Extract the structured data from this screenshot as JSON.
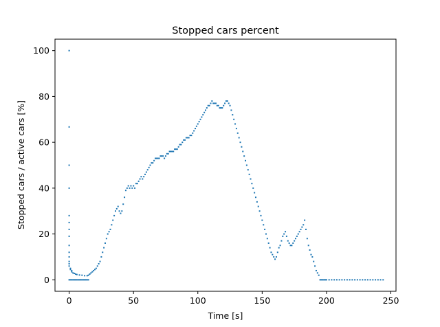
{
  "chart_data": {
    "type": "scatter",
    "title": "Stopped cars percent",
    "xlabel": "Time [s]",
    "ylabel": "Stopped cars / active cars [%]",
    "xlim": [
      -11,
      254
    ],
    "ylim": [
      -5,
      105
    ],
    "xticks": [
      0,
      50,
      100,
      150,
      200,
      250
    ],
    "yticks": [
      0,
      20,
      40,
      60,
      80,
      100
    ],
    "grid": false,
    "marker_color": "#1f77b4",
    "series": [
      {
        "marker": "small-dot",
        "points": [
          [
            0,
            100
          ],
          [
            0,
            66.7
          ],
          [
            0,
            50
          ],
          [
            0,
            40
          ],
          [
            0,
            28
          ],
          [
            0,
            25
          ],
          [
            0,
            22
          ],
          [
            0,
            19
          ],
          [
            0,
            15
          ],
          [
            0,
            12
          ],
          [
            0,
            10
          ],
          [
            0,
            8
          ],
          [
            0,
            7
          ],
          [
            0,
            6
          ],
          [
            1,
            5
          ],
          [
            1,
            4.5
          ],
          [
            2,
            4
          ],
          [
            2,
            3.5
          ],
          [
            3,
            3
          ],
          [
            4,
            2.8
          ],
          [
            5,
            2.5
          ],
          [
            6,
            2.3
          ],
          [
            8,
            2.1
          ],
          [
            10,
            2
          ],
          [
            12,
            1.8
          ],
          [
            14,
            1.8
          ],
          [
            0,
            0
          ],
          [
            1,
            0
          ],
          [
            2,
            0
          ],
          [
            3,
            0
          ],
          [
            4,
            0
          ],
          [
            5,
            0
          ],
          [
            6,
            0
          ],
          [
            7,
            0
          ],
          [
            8,
            0
          ],
          [
            9,
            0
          ],
          [
            10,
            0
          ],
          [
            11,
            0
          ],
          [
            12,
            0
          ],
          [
            13,
            0
          ],
          [
            14,
            0
          ],
          [
            15,
            0
          ],
          [
            15,
            2
          ],
          [
            16,
            2.5
          ],
          [
            17,
            3
          ],
          [
            18,
            3.5
          ],
          [
            19,
            4
          ],
          [
            20,
            4.5
          ],
          [
            21,
            5
          ],
          [
            22,
            6
          ],
          [
            23,
            7
          ],
          [
            24,
            8
          ],
          [
            25,
            10
          ],
          [
            26,
            12
          ],
          [
            27,
            14
          ],
          [
            28,
            16
          ],
          [
            29,
            18
          ],
          [
            30,
            20
          ],
          [
            31,
            21
          ],
          [
            32,
            22
          ],
          [
            33,
            24
          ],
          [
            34,
            26
          ],
          [
            35,
            28
          ],
          [
            36,
            30
          ],
          [
            37,
            31
          ],
          [
            38,
            32
          ],
          [
            39,
            30
          ],
          [
            40,
            29
          ],
          [
            41,
            30
          ],
          [
            42,
            33
          ],
          [
            43,
            36
          ],
          [
            44,
            39
          ],
          [
            45,
            40
          ],
          [
            46,
            41
          ],
          [
            47,
            40
          ],
          [
            48,
            41
          ],
          [
            49,
            40
          ],
          [
            50,
            41
          ],
          [
            51,
            40
          ],
          [
            52,
            42
          ],
          [
            53,
            42
          ],
          [
            54,
            43
          ],
          [
            55,
            44
          ],
          [
            56,
            45
          ],
          [
            57,
            44
          ],
          [
            58,
            45
          ],
          [
            59,
            46
          ],
          [
            60,
            47
          ],
          [
            61,
            48
          ],
          [
            62,
            49
          ],
          [
            63,
            50
          ],
          [
            64,
            51
          ],
          [
            65,
            51
          ],
          [
            66,
            52
          ],
          [
            67,
            53
          ],
          [
            68,
            53
          ],
          [
            69,
            53
          ],
          [
            70,
            53
          ],
          [
            71,
            54
          ],
          [
            72,
            54
          ],
          [
            73,
            54
          ],
          [
            74,
            53
          ],
          [
            75,
            54
          ],
          [
            76,
            55
          ],
          [
            77,
            55
          ],
          [
            78,
            56
          ],
          [
            79,
            56
          ],
          [
            80,
            56
          ],
          [
            81,
            56
          ],
          [
            82,
            57
          ],
          [
            83,
            57
          ],
          [
            84,
            57
          ],
          [
            85,
            58
          ],
          [
            86,
            59
          ],
          [
            87,
            59
          ],
          [
            88,
            60
          ],
          [
            89,
            61
          ],
          [
            90,
            61
          ],
          [
            91,
            62
          ],
          [
            92,
            62
          ],
          [
            93,
            62
          ],
          [
            94,
            63
          ],
          [
            95,
            63
          ],
          [
            96,
            64
          ],
          [
            97,
            65
          ],
          [
            98,
            66
          ],
          [
            99,
            67
          ],
          [
            100,
            68
          ],
          [
            101,
            69
          ],
          [
            102,
            70
          ],
          [
            103,
            71
          ],
          [
            104,
            72
          ],
          [
            105,
            73
          ],
          [
            106,
            74
          ],
          [
            107,
            75
          ],
          [
            108,
            76
          ],
          [
            109,
            76
          ],
          [
            110,
            77
          ],
          [
            111,
            78
          ],
          [
            112,
            77
          ],
          [
            113,
            77
          ],
          [
            114,
            77
          ],
          [
            115,
            76
          ],
          [
            116,
            76
          ],
          [
            117,
            75
          ],
          [
            118,
            75
          ],
          [
            119,
            75
          ],
          [
            120,
            76
          ],
          [
            121,
            77
          ],
          [
            122,
            78
          ],
          [
            123,
            78
          ],
          [
            124,
            77
          ],
          [
            125,
            76
          ],
          [
            126,
            74
          ],
          [
            127,
            72
          ],
          [
            128,
            70
          ],
          [
            129,
            68
          ],
          [
            130,
            66
          ],
          [
            131,
            64
          ],
          [
            132,
            62
          ],
          [
            133,
            60
          ],
          [
            134,
            58
          ],
          [
            135,
            56
          ],
          [
            136,
            54
          ],
          [
            137,
            52
          ],
          [
            138,
            50
          ],
          [
            139,
            48
          ],
          [
            140,
            46
          ],
          [
            141,
            44
          ],
          [
            142,
            42
          ],
          [
            143,
            40
          ],
          [
            144,
            38
          ],
          [
            145,
            36
          ],
          [
            146,
            34
          ],
          [
            147,
            32
          ],
          [
            148,
            30
          ],
          [
            149,
            28
          ],
          [
            150,
            26
          ],
          [
            151,
            24
          ],
          [
            152,
            22
          ],
          [
            153,
            20
          ],
          [
            154,
            18
          ],
          [
            155,
            16
          ],
          [
            156,
            14
          ],
          [
            157,
            12
          ],
          [
            158,
            11
          ],
          [
            159,
            10
          ],
          [
            160,
            9
          ],
          [
            161,
            10
          ],
          [
            162,
            12
          ],
          [
            163,
            14
          ],
          [
            164,
            15
          ],
          [
            165,
            17
          ],
          [
            166,
            19
          ],
          [
            167,
            20
          ],
          [
            168,
            21
          ],
          [
            169,
            19
          ],
          [
            170,
            17
          ],
          [
            171,
            16
          ],
          [
            172,
            15
          ],
          [
            173,
            15
          ],
          [
            174,
            16
          ],
          [
            175,
            17
          ],
          [
            176,
            18
          ],
          [
            177,
            19
          ],
          [
            178,
            20
          ],
          [
            179,
            21
          ],
          [
            180,
            22
          ],
          [
            181,
            23
          ],
          [
            182,
            24
          ],
          [
            183,
            26
          ],
          [
            184,
            22
          ],
          [
            185,
            18
          ],
          [
            186,
            15
          ],
          [
            187,
            13
          ],
          [
            188,
            11
          ],
          [
            189,
            10
          ],
          [
            190,
            8
          ],
          [
            191,
            6
          ],
          [
            192,
            4
          ],
          [
            193,
            3
          ],
          [
            194,
            2
          ],
          [
            195,
            0
          ],
          [
            196,
            0
          ],
          [
            197,
            0
          ],
          [
            198,
            0
          ],
          [
            199,
            0
          ],
          [
            200,
            0
          ],
          [
            202,
            0
          ],
          [
            204,
            0
          ],
          [
            206,
            0
          ],
          [
            208,
            0
          ],
          [
            210,
            0
          ],
          [
            212,
            0
          ],
          [
            214,
            0
          ],
          [
            216,
            0
          ],
          [
            218,
            0
          ],
          [
            220,
            0
          ],
          [
            222,
            0
          ],
          [
            224,
            0
          ],
          [
            226,
            0
          ],
          [
            228,
            0
          ],
          [
            230,
            0
          ],
          [
            232,
            0
          ],
          [
            234,
            0
          ],
          [
            236,
            0
          ],
          [
            238,
            0
          ],
          [
            240,
            0
          ],
          [
            242,
            0
          ],
          [
            244,
            0
          ]
        ]
      }
    ]
  }
}
